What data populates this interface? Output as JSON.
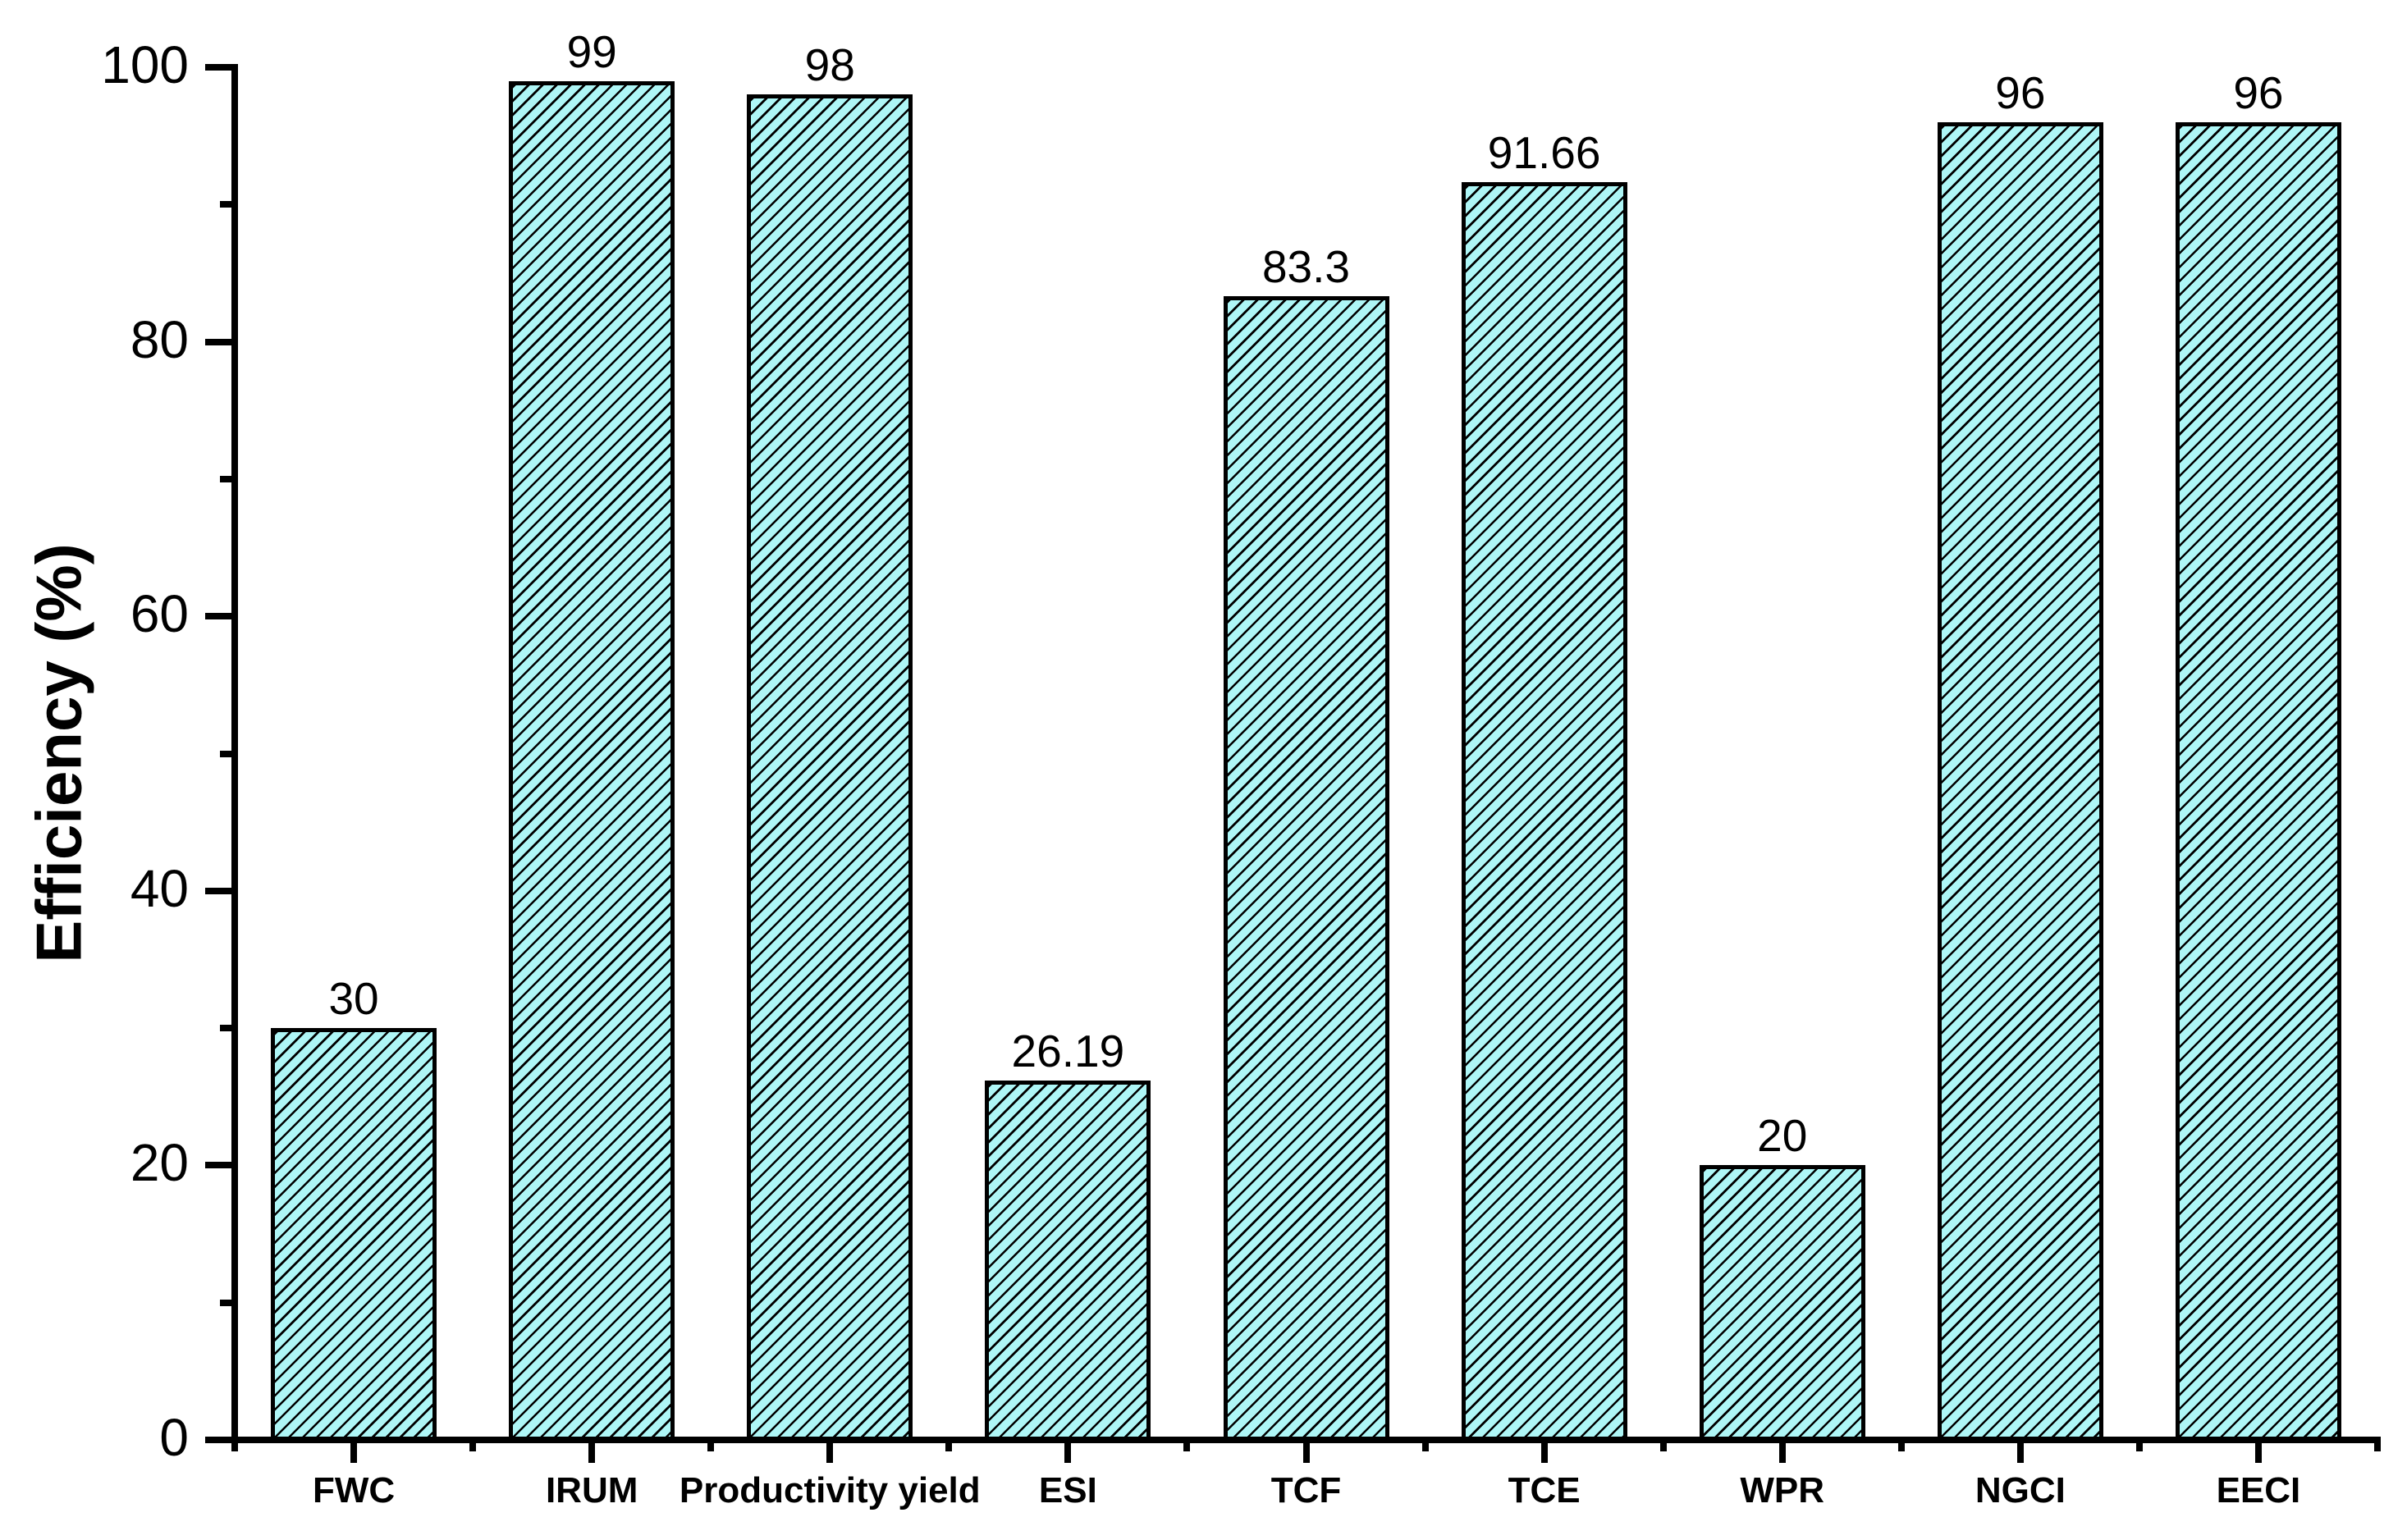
{
  "chart_data": {
    "type": "bar",
    "title": "",
    "categories": [
      "FWC",
      "IRUM",
      "Productivity yield",
      "ESI",
      "TCF",
      "TCE",
      "WPR",
      "NGCI",
      "EECI"
    ],
    "values": [
      30,
      99,
      98,
      26.19,
      83.3,
      91.66,
      20,
      96,
      96
    ],
    "value_labels": [
      "30",
      "99",
      "98",
      "26.19",
      "83.3",
      "91.66",
      "20",
      "96",
      "96"
    ],
    "xlabel": "",
    "ylabel": "Efficiency (%)",
    "ylim": [
      0,
      100
    ],
    "y_major_ticks": [
      0,
      20,
      40,
      60,
      80,
      100
    ],
    "y_major_tick_labels": [
      "0",
      "20",
      "40",
      "60",
      "80",
      "100"
    ],
    "y_minor_ticks": [
      10,
      30,
      50,
      70,
      90
    ],
    "grid": false,
    "legend": "none",
    "bar_style": {
      "fill_color": "#aef6f6",
      "hatch": "forward-diagonal",
      "hatch_color": "#000000",
      "border_color": "#000000"
    },
    "axis_color": "#000000",
    "background_color": "#ffffff"
  }
}
